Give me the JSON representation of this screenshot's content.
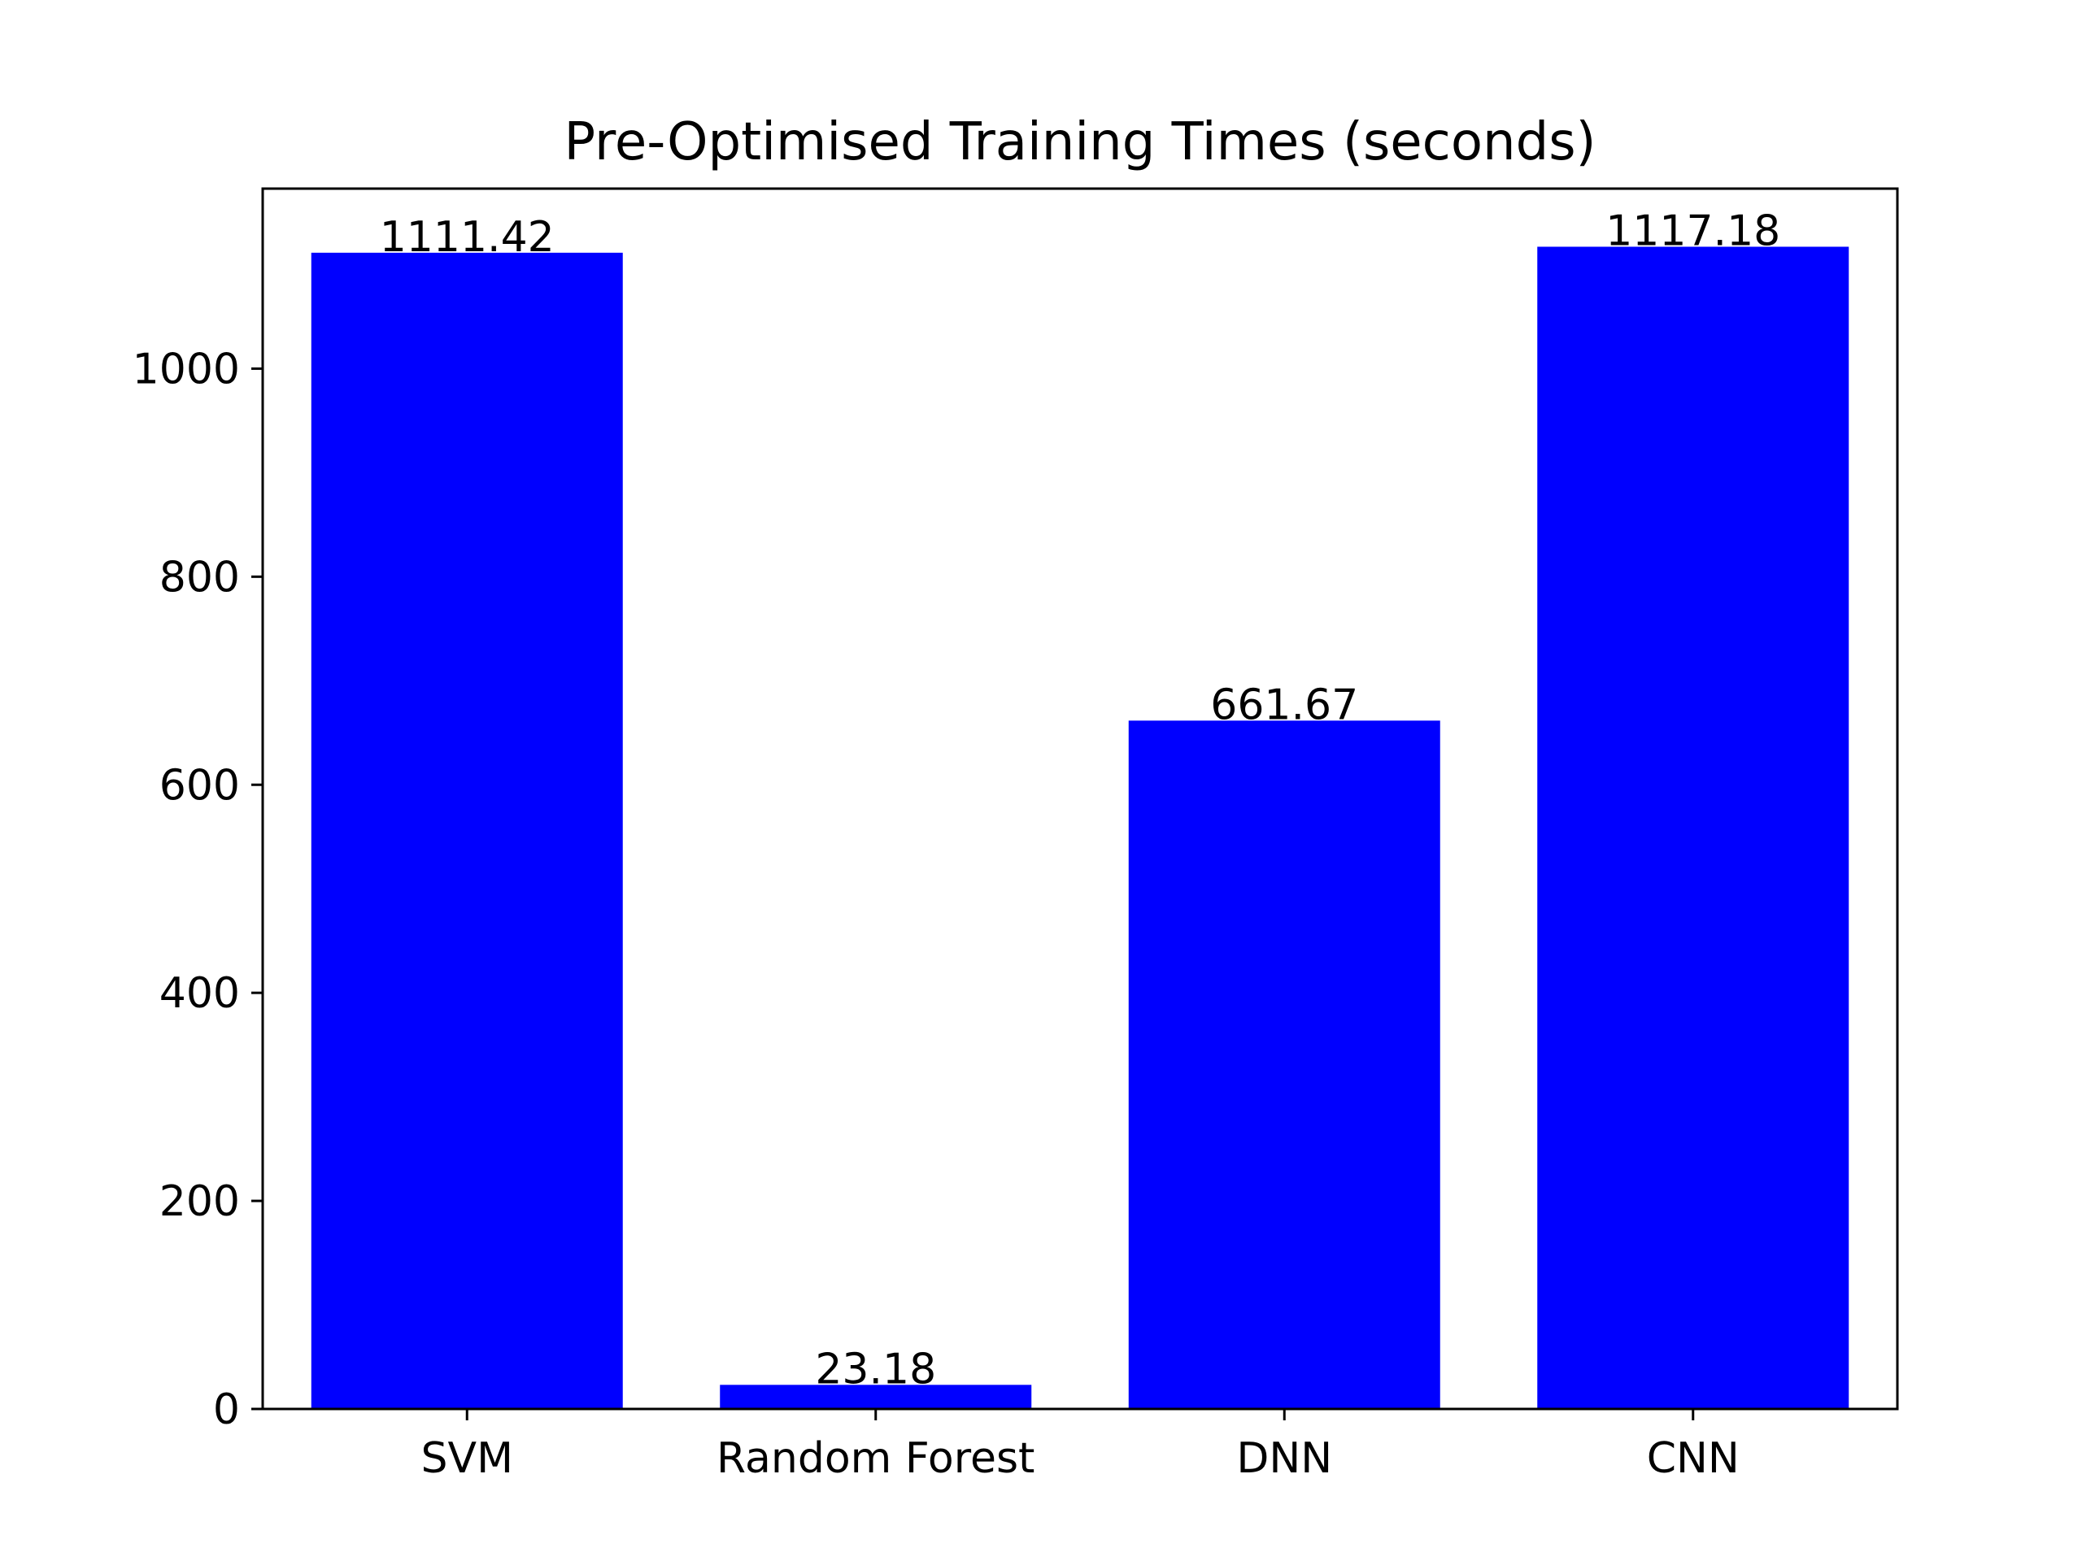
{
  "chart_data": {
    "type": "bar",
    "title": "Pre-Optimised Training Times (seconds)",
    "xlabel": "",
    "ylabel": "",
    "categories": [
      "SVM",
      "Random Forest",
      "DNN",
      "CNN"
    ],
    "values": [
      1111.42,
      23.18,
      661.67,
      1117.18
    ],
    "value_labels": [
      "1111.42",
      "23.18",
      "661.67",
      "1117.18"
    ],
    "yticks": [
      0,
      200,
      400,
      600,
      800,
      1000
    ],
    "ylim": [
      0,
      1173.04
    ],
    "bar_color": "#0000ff",
    "grid": false,
    "legend": "none"
  }
}
